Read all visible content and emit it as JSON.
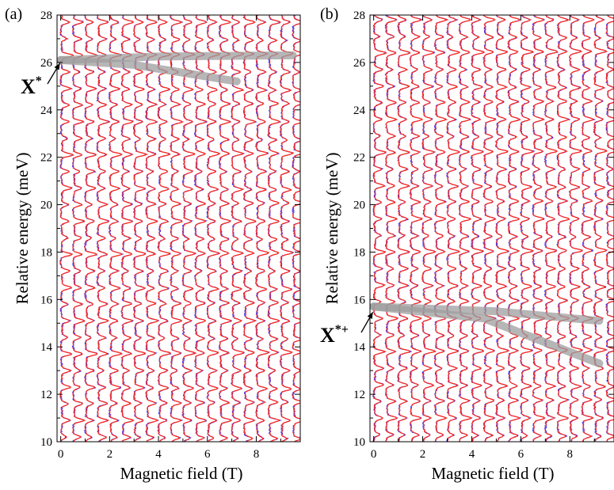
{
  "colors": {
    "trace_a": "#ff2a1a",
    "trace_b": "#1e22ff",
    "highlight": "#9e9e9e",
    "axis": "#000000"
  },
  "chart_data": [
    {
      "type": "line",
      "panel_label": "(a)",
      "xlabel": "Magnetic field (T)",
      "ylabel": "Relative energy (meV)",
      "xlim": [
        -0.15,
        9.8
      ],
      "ylim": [
        10,
        28
      ],
      "x_ticks": [
        0,
        2,
        4,
        6,
        8
      ],
      "y_ticks": [
        10,
        12,
        14,
        16,
        18,
        20,
        22,
        24,
        26,
        28
      ],
      "trace_fields": [
        0,
        0.5,
        1.0,
        1.5,
        2.0,
        2.5,
        3.0,
        3.5,
        4.0,
        4.5,
        5.0,
        5.5,
        6.0,
        6.5,
        7.0,
        7.5,
        8.0,
        8.5,
        9.0,
        9.5
      ],
      "trace_offsets_meV": [
        10.2,
        10.9,
        11.6,
        12.3,
        13.0,
        13.7,
        14.4,
        15.1,
        15.8,
        16.5,
        17.2,
        17.9,
        18.6,
        19.3,
        20.0,
        20.7,
        21.4,
        22.1,
        22.8,
        23.5,
        24.2,
        24.9,
        25.6,
        26.3,
        27.0,
        27.7
      ],
      "highlight_lines": [
        {
          "points": [
            [
              0,
              26.1
            ],
            [
              3.0,
              25.9
            ],
            [
              7.2,
              25.2
            ]
          ]
        },
        {
          "points": [
            [
              0,
              26.1
            ],
            [
              4.0,
              26.25
            ],
            [
              9.5,
              26.3
            ]
          ]
        }
      ],
      "annotation": {
        "text": "X",
        "superscript": "*",
        "points_to": [
          0,
          26.1
        ]
      }
    },
    {
      "type": "line",
      "panel_label": "(b)",
      "xlabel": "Magnetic field (T)",
      "ylabel": "Relative energy (meV)",
      "xlim": [
        -0.15,
        9.8
      ],
      "ylim": [
        10,
        28
      ],
      "x_ticks": [
        0,
        2,
        4,
        6,
        8
      ],
      "y_ticks": [
        10,
        12,
        14,
        16,
        18,
        20,
        22,
        24,
        26,
        28
      ],
      "trace_fields": [
        0,
        0.5,
        1.0,
        1.5,
        2.0,
        2.5,
        3.0,
        3.5,
        4.0,
        4.5,
        5.0,
        5.5,
        6.0,
        6.5,
        7.0,
        7.5,
        8.0,
        8.5,
        9.0,
        9.5
      ],
      "trace_offsets_meV": [
        10.3,
        11.0,
        11.7,
        12.4,
        13.1,
        13.8,
        14.5,
        15.2,
        15.9,
        16.6,
        17.3,
        18.0,
        18.7,
        19.4,
        20.1,
        20.8,
        21.5,
        22.2,
        22.9,
        23.6,
        24.3,
        25.0,
        25.7,
        26.4,
        27.1,
        27.8
      ],
      "highlight_lines": [
        {
          "points": [
            [
              0,
              15.7
            ],
            [
              4.5,
              15.2
            ],
            [
              9.2,
              13.3
            ]
          ]
        },
        {
          "points": [
            [
              0,
              15.7
            ],
            [
              5.0,
              15.5
            ],
            [
              9.2,
              15.1
            ]
          ]
        }
      ],
      "annotation": {
        "text": "X",
        "superscript": "*+",
        "points_to": [
          0,
          15.6
        ]
      }
    }
  ]
}
